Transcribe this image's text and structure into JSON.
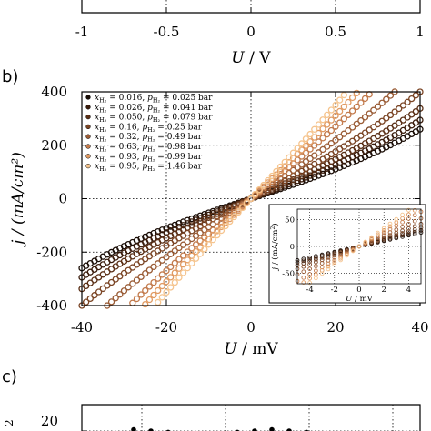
{
  "panel_a": {
    "x_ticks": [
      "-1",
      "-0.5",
      "0",
      "0.5",
      "1"
    ],
    "xlabel_var": "U",
    "xlabel_unit": " / V"
  },
  "panel_b": {
    "label": "b)",
    "x_ticks": [
      "-40",
      "-20",
      "0",
      "20",
      "40"
    ],
    "y_ticks": [
      "400",
      "200",
      "0",
      "-200",
      "-400"
    ],
    "xlabel_var": "U",
    "xlabel_unit": " / mV",
    "ylabel": "j / (mA/cm²)"
  },
  "panel_c": {
    "label": "c)",
    "y_ticks": [
      "20"
    ],
    "ylabel_fragment": "2"
  },
  "chart_data": [
    {
      "type": "scatter",
      "panel": "b",
      "xlabel": "U / mV",
      "ylabel": "j / (mA/cm2)",
      "xlim": [
        -40,
        40
      ],
      "ylim": [
        -400,
        400
      ],
      "grid": true,
      "legend_position": "top-left",
      "series": [
        {
          "name": "x_H2 = 0.016, p_H2 = 0.025 bar",
          "color": "#1a0d06",
          "slope": 5.2,
          "cubic": 0.00081
        },
        {
          "name": "x_H2 = 0.026, p_H2 = 0.041 bar",
          "color": "#3a1c0c",
          "slope": 6.0,
          "cubic": 0.00085
        },
        {
          "name": "x_H2 = 0.050, p_H2 = 0.079 bar",
          "color": "#5a2f16",
          "slope": 7.0,
          "cubic": 0.0009
        },
        {
          "name": "x_H2 = 0.16, p_H2 = 0.25 bar",
          "color": "#7a4424",
          "slope": 8.4,
          "cubic": 0.001
        },
        {
          "name": "x_H2 = 0.32, p_H2 = 0.49 bar",
          "color": "#9a5c36",
          "slope": 10.5,
          "cubic": 0.0011
        },
        {
          "name": "x_H2 = 0.63, p_H2 = 0.98 bar",
          "color": "#c27a4c",
          "slope": 13.0,
          "cubic": 0.0012
        },
        {
          "name": "x_H2 = 0.93, p_H2 = 0.99 bar",
          "color": "#e09a62",
          "slope": 15.0,
          "cubic": 0.0013
        },
        {
          "name": "x_H2 = 0.95, p_H2 = 1.46 bar",
          "color": "#f5c48e",
          "slope": 17.0,
          "cubic": 0.0013
        }
      ],
      "legend_entries": [
        {
          "x_sub": "H₂",
          "x_val": " = 0.016, ",
          "p_sub": "H₂",
          "p_val": " = 0.025 bar"
        },
        {
          "x_sub": "H₂",
          "x_val": " = 0.026, ",
          "p_sub": "H₂",
          "p_val": " = 0.041 bar"
        },
        {
          "x_sub": "H₂",
          "x_val": " = 0.050, ",
          "p_sub": "H₂",
          "p_val": " = 0.079 bar"
        },
        {
          "x_sub": "H₂",
          "x_val": " = 0.16, ",
          "p_sub": "H₂",
          "p_val": " = 0.25 bar"
        },
        {
          "x_sub": "H₂",
          "x_val": " = 0.32, ",
          "p_sub": "H₂",
          "p_val": " = 0.49 bar"
        },
        {
          "x_sub": "H₂",
          "x_val": " = 0.63, ",
          "p_sub": "H₂",
          "p_val": " = 0.98 bar"
        },
        {
          "x_sub": "H₂",
          "x_val": " = 0.93, ",
          "p_sub": "H₂",
          "p_val": " = 0.99 bar"
        },
        {
          "x_sub": "H₂",
          "x_val": " = 0.95, ",
          "p_sub": "H₂",
          "p_val": " = 1.46 bar"
        }
      ]
    },
    {
      "type": "scatter",
      "panel": "b-inset",
      "xlabel": "U / mV",
      "ylabel": "j / (mA/cm2)",
      "xlim": [
        -5,
        5
      ],
      "ylim": [
        -70,
        70
      ],
      "x_ticks": [
        "-4",
        "-2",
        "0",
        "2",
        "4"
      ],
      "y_ticks": [
        "50",
        "0",
        "-50"
      ],
      "grid": true
    },
    {
      "type": "scatter",
      "panel": "c",
      "ylim": [
        10,
        30
      ],
      "y_ticks": [
        "20"
      ],
      "values": [
        19,
        20.5,
        20,
        19.5,
        19,
        18.5,
        19,
        19.5,
        20,
        20.5,
        20,
        19.5
      ]
    }
  ]
}
